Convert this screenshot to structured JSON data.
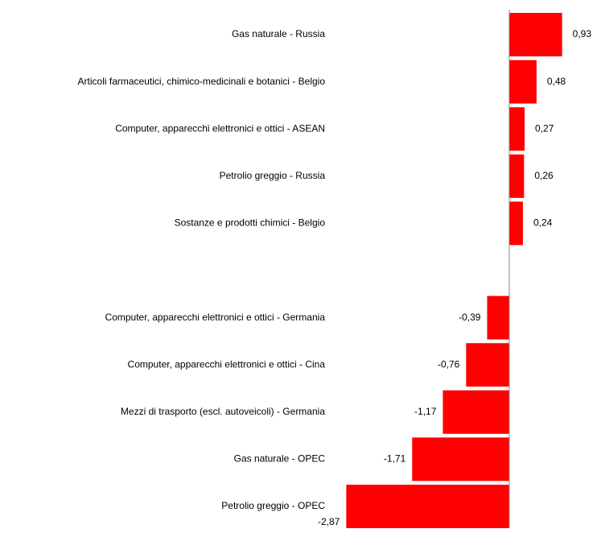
{
  "chart_data": {
    "type": "hbar",
    "categories": [
      "Gas naturale - Russia",
      "Articoli farmaceutici, chimico-medicinali e botanici - Belgio",
      "Computer, apparecchi elettronici e ottici - ASEAN",
      "Petrolio greggio - Russia",
      "Sostanze e prodotti chimici - Belgio",
      null,
      "Computer, apparecchi elettronici e ottici - Germania",
      "Computer, apparecchi elettronici e ottici - Cina",
      "Mezzi di trasporto (escl. autoveicoli) - Germania",
      "Gas naturale - OPEC",
      "Petrolio greggio - OPEC"
    ],
    "values": [
      0.93,
      0.48,
      0.27,
      0.26,
      0.24,
      null,
      -0.39,
      -0.76,
      -1.17,
      -1.71,
      -2.87
    ],
    "value_labels": [
      "0,93",
      "0,48",
      "0,27",
      "0,26",
      "0,24",
      null,
      "-0,39",
      "-0,76",
      "-1,17",
      "-1,71",
      "-2,87"
    ],
    "color": "#ff0000"
  }
}
